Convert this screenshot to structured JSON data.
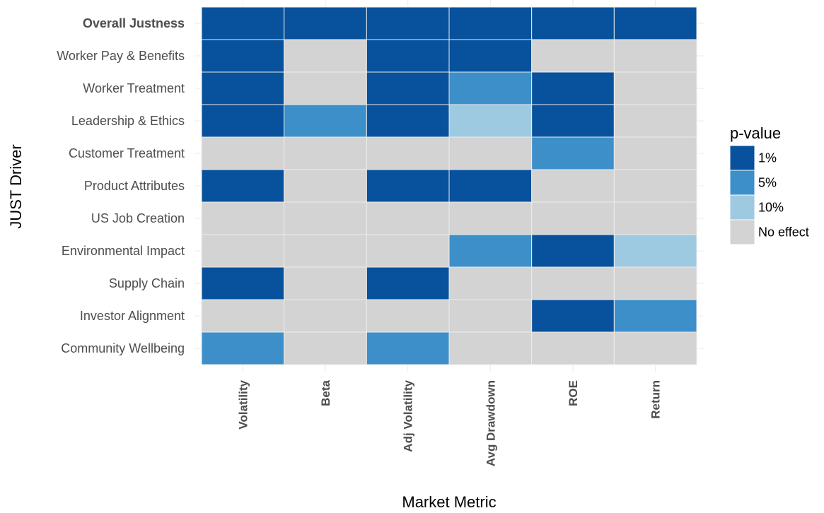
{
  "chart_data": {
    "type": "heatmap",
    "title": "",
    "xlabel": "Market Metric",
    "ylabel": "JUST Driver",
    "x_categories": [
      "Volatility",
      "Beta",
      "Adj Volatility",
      "Avg Drawdown",
      "ROE",
      "Return"
    ],
    "y_categories": [
      "Overall Justness",
      "Worker Pay & Benefits",
      "Worker Treatment",
      "Leadership & Ethics",
      "Customer Treatment",
      "Product Attributes",
      "US Job Creation",
      "Environmental Impact",
      "Supply Chain",
      "Investor Alignment",
      "Community Wellbeing"
    ],
    "bold_y_categories": [
      "Overall Justness"
    ],
    "values": [
      [
        "1%",
        "1%",
        "1%",
        "1%",
        "1%",
        "1%"
      ],
      [
        "1%",
        "No effect",
        "1%",
        "1%",
        "No effect",
        "No effect"
      ],
      [
        "1%",
        "No effect",
        "1%",
        "5%",
        "1%",
        "No effect"
      ],
      [
        "1%",
        "5%",
        "1%",
        "10%",
        "1%",
        "No effect"
      ],
      [
        "No effect",
        "No effect",
        "No effect",
        "No effect",
        "5%",
        "No effect"
      ],
      [
        "1%",
        "No effect",
        "1%",
        "1%",
        "No effect",
        "No effect"
      ],
      [
        "No effect",
        "No effect",
        "No effect",
        "No effect",
        "No effect",
        "No effect"
      ],
      [
        "No effect",
        "No effect",
        "No effect",
        "5%",
        "1%",
        "10%"
      ],
      [
        "1%",
        "No effect",
        "1%",
        "No effect",
        "No effect",
        "No effect"
      ],
      [
        "No effect",
        "No effect",
        "No effect",
        "No effect",
        "1%",
        "5%"
      ],
      [
        "5%",
        "No effect",
        "5%",
        "No effect",
        "No effect",
        "No effect"
      ]
    ],
    "legend": {
      "title": "p-value",
      "position": "right",
      "entries": [
        {
          "label": "1%",
          "color": "#08519c"
        },
        {
          "label": "5%",
          "color": "#3d8fca"
        },
        {
          "label": "10%",
          "color": "#9ecae1"
        },
        {
          "label": "No effect",
          "color": "#d3d3d3"
        }
      ]
    },
    "grid": true
  }
}
